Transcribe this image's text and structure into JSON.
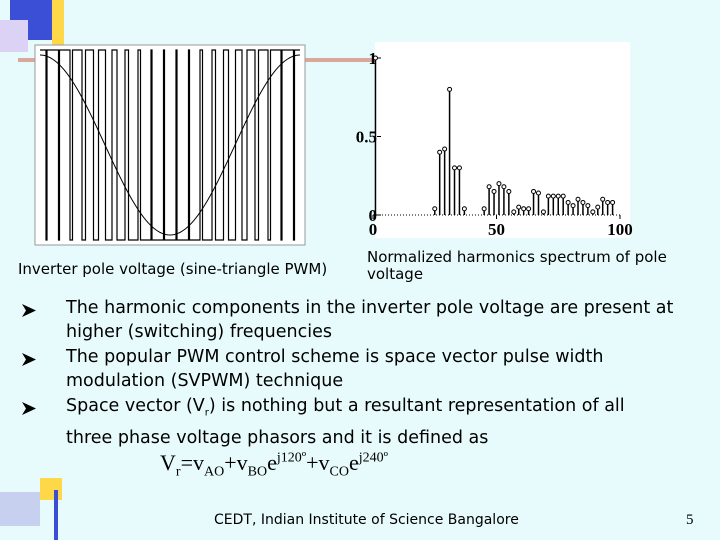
{
  "figures": {
    "left_caption": "Inverter pole voltage (sine-triangle PWM)",
    "right_caption": "Normalized harmonics spectrum of pole voltage",
    "spectrum": {
      "xlim": [
        0,
        100
      ],
      "ylim": [
        0,
        1
      ],
      "xticks": [
        0,
        50,
        100
      ],
      "yticks": [
        0,
        0.5,
        1
      ],
      "x": [
        1,
        25,
        27,
        29,
        31,
        33,
        35,
        37,
        45,
        47,
        49,
        51,
        53,
        55,
        57,
        59,
        61,
        63,
        65,
        67,
        69,
        71,
        73,
        75,
        77,
        79,
        81,
        83,
        85,
        87,
        89,
        91,
        93,
        95,
        97
      ],
      "values": [
        1,
        0.04,
        0.4,
        0.42,
        0.8,
        0.3,
        0.3,
        0.04,
        0.04,
        0.18,
        0.15,
        0.2,
        0.18,
        0.15,
        0.02,
        0.05,
        0.04,
        0.04,
        0.15,
        0.14,
        0.02,
        0.12,
        0.12,
        0.12,
        0.12,
        0.08,
        0.06,
        0.1,
        0.08,
        0.06,
        0.02,
        0.05,
        0.1,
        0.08,
        0.08
      ]
    }
  },
  "bullets": [
    [
      "The harmonic components in the inverter pole voltage are present at higher (switching) frequencies"
    ],
    [
      "The popular PWM control scheme is space vector pulse width modulation (SVPWM) technique"
    ],
    [
      "Space vector (V",
      "r",
      ") is nothing but a resultant representation of all three phase voltage phasors and it is defined as"
    ]
  ],
  "formula": [
    "V",
    "r",
    "=v",
    "AO",
    "+v",
    "BO",
    "e",
    "j120º",
    "+v",
    "CO",
    "e",
    "j240º"
  ],
  "footer": "CEDT, Indian Institute of Science Bangalore",
  "page_number": "5"
}
